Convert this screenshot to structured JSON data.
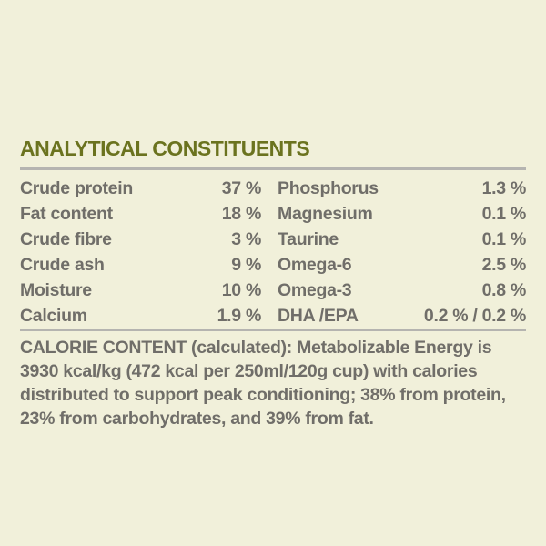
{
  "colors": {
    "background": "#f1f0da",
    "heading": "#6b731f",
    "body_text": "#706e69",
    "divider": "#b5b4b0"
  },
  "analytical": {
    "heading": "ANALYTICAL CONSTITUENTS",
    "rows": [
      {
        "left": {
          "label": "Crude protein",
          "value": "37 %"
        },
        "right": {
          "label": "Phosphorus",
          "value": "1.3 %"
        }
      },
      {
        "left": {
          "label": "Fat content",
          "value": "18 %"
        },
        "right": {
          "label": "Magnesium",
          "value": "0.1 %"
        }
      },
      {
        "left": {
          "label": "Crude fibre",
          "value": "3 %"
        },
        "right": {
          "label": "Taurine",
          "value": "0.1 %"
        }
      },
      {
        "left": {
          "label": "Crude ash",
          "value": "9 %"
        },
        "right": {
          "label": "Omega-6",
          "value": "2.5 %"
        }
      },
      {
        "left": {
          "label": "Moisture",
          "value": "10 %"
        },
        "right": {
          "label": "Omega-3",
          "value": "0.8 %"
        }
      },
      {
        "left": {
          "label": "Calcium",
          "value": "1.9 %"
        },
        "right": {
          "label": "DHA /EPA",
          "value": "0.2 % / 0.2 %"
        }
      }
    ]
  },
  "calorie": {
    "lines": [
      "CALORIE CONTENT (calculated): Metabolizable Energy is",
      "3930 kcal/kg (472 kcal per 250ml/120g cup) with calories",
      "distributed to support peak conditioning; 38% from protein,",
      "23% from carbohydrates, and 39% from fat."
    ]
  }
}
